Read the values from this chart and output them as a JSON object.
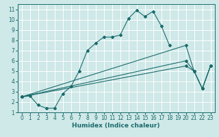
{
  "xlabel": "Humidex (Indice chaleur)",
  "ylabel": "",
  "bg_color": "#cfe8e8",
  "grid_color": "#ffffff",
  "line_color": "#1a6b6b",
  "xlim": [
    -0.5,
    23.5
  ],
  "ylim": [
    1,
    11.5
  ],
  "xticks": [
    0,
    1,
    2,
    3,
    4,
    5,
    6,
    7,
    8,
    9,
    10,
    11,
    12,
    13,
    14,
    15,
    16,
    17,
    18,
    19,
    20,
    21,
    22,
    23
  ],
  "yticks": [
    1,
    2,
    3,
    4,
    5,
    6,
    7,
    8,
    9,
    10,
    11
  ],
  "series": [
    {
      "x": [
        0,
        1,
        2,
        3,
        4,
        5,
        6,
        7,
        8,
        9,
        10,
        11,
        12,
        13,
        14,
        15,
        16,
        17,
        18,
        19,
        20,
        21,
        22,
        23
      ],
      "y": [
        2.5,
        2.6,
        1.7,
        1.4,
        1.4,
        2.8,
        3.5,
        5.0,
        7.0,
        7.7,
        8.3,
        8.3,
        8.5,
        10.1,
        10.9,
        10.3,
        10.8,
        9.4,
        7.5,
        null,
        null,
        null,
        null,
        null
      ]
    },
    {
      "x": [
        0,
        20,
        21,
        22,
        23
      ],
      "y": [
        2.5,
        7.5,
        5.0,
        3.3,
        5.5
      ]
    },
    {
      "x": [
        0,
        20,
        21,
        22,
        23
      ],
      "y": [
        2.5,
        6.0,
        5.0,
        3.3,
        5.5
      ]
    },
    {
      "x": [
        0,
        20,
        21,
        22,
        23
      ],
      "y": [
        2.5,
        5.5,
        5.0,
        3.3,
        5.5
      ]
    }
  ]
}
